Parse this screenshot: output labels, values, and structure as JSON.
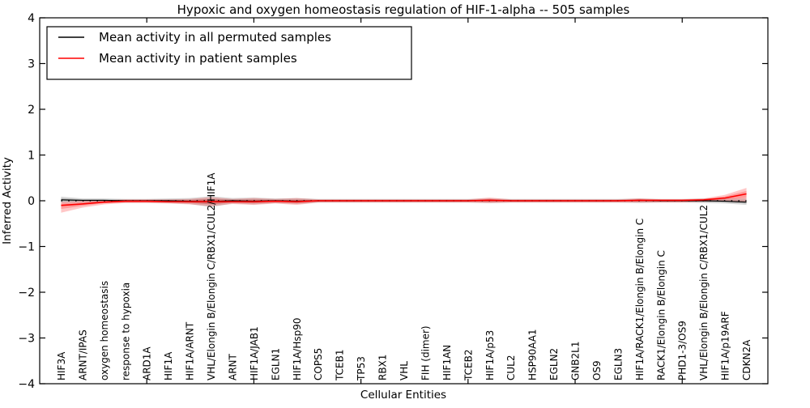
{
  "figure": {
    "title": "Hypoxic and oxygen homeostasis regulation of HIF-1-alpha -- 505 samples",
    "xlabel": "Cellular Entities",
    "ylabel": "Inferred Activity"
  },
  "legend": {
    "items": [
      {
        "label": "Mean activity in all permuted samples",
        "color": "#000000"
      },
      {
        "label": "Mean activity in patient samples",
        "color": "#ff0000"
      }
    ]
  },
  "chart_data": {
    "type": "line",
    "title": "Hypoxic and oxygen homeostasis regulation of HIF-1-alpha -- 505 samples",
    "xlabel": "Cellular Entities",
    "ylabel": "Inferred Activity",
    "ylim": [
      -4,
      4
    ],
    "xlim": [
      0,
      34
    ],
    "yticks": [
      -4,
      -3,
      -2,
      -1,
      0,
      1,
      2,
      3,
      4
    ],
    "xticks_minor_positions": [
      5,
      10,
      15,
      20,
      25,
      30
    ],
    "grid": false,
    "legend_position": "upper left",
    "x": [
      1,
      2,
      3,
      4,
      5,
      6,
      7,
      8,
      9,
      10,
      11,
      12,
      13,
      14,
      15,
      16,
      17,
      18,
      19,
      20,
      21,
      22,
      23,
      24,
      25,
      26,
      27,
      28,
      29,
      30,
      31,
      32,
      33
    ],
    "categories": [
      "HIF3A",
      "ARNT/IPAS",
      "oxygen homeostasis",
      "response to hypoxia",
      "ARD1A",
      "HIF1A",
      "HIF1A/ARNT",
      "VHL/Elongin B/Elongin C/RBX1/CUL2/HIF1A",
      "ARNT",
      "HIF1A/JAB1",
      "EGLN1",
      "HIF1A/Hsp90",
      "COPS5",
      "TCEB1",
      "TP53",
      "RBX1",
      "VHL",
      "FIH (dimer)",
      "HIF1AN",
      "TCEB2",
      "HIF1A/p53",
      "CUL2",
      "HSP90AA1",
      "EGLN2",
      "GNB2L1",
      "OS9",
      "EGLN3",
      "HIF1A/RACK1/Elongin B/Elongin C",
      "RACK1/Elongin B/Elongin C",
      "PHD1-3/OS9",
      "VHL/Elongin B/Elongin C/RBX1/CUL2",
      "HIF1A/p19ARF",
      "CDKN2A"
    ],
    "zero_line": {
      "y": 0,
      "style": "dotted",
      "color": "#000000"
    },
    "series": [
      {
        "name": "Mean activity in all permuted samples",
        "color": "#000000",
        "band_color": "rgba(0,0,0,0.15)",
        "values": [
          0.02,
          0.01,
          0.01,
          0,
          0,
          0,
          -0.01,
          -0.02,
          0,
          -0.01,
          0,
          -0.01,
          0,
          0,
          0,
          0,
          0,
          0,
          0,
          0,
          0.01,
          0,
          0,
          0,
          0,
          0,
          0,
          0.01,
          0,
          0,
          0,
          -0.01,
          -0.03
        ],
        "band_upper": [
          0.09,
          0.05,
          0.05,
          0.04,
          0.04,
          0.05,
          0.06,
          0.1,
          0.06,
          0.07,
          0.05,
          0.06,
          0.04,
          0.04,
          0.04,
          0.04,
          0.04,
          0.04,
          0.04,
          0.04,
          0.05,
          0.04,
          0.04,
          0.04,
          0.04,
          0.04,
          0.04,
          0.05,
          0.04,
          0.04,
          0.05,
          0.05,
          0.05
        ],
        "band_lower": [
          -0.05,
          -0.04,
          -0.04,
          -0.04,
          -0.04,
          -0.05,
          -0.07,
          -0.14,
          -0.06,
          -0.08,
          -0.05,
          -0.07,
          -0.04,
          -0.04,
          -0.04,
          -0.04,
          -0.04,
          -0.04,
          -0.04,
          -0.04,
          -0.05,
          -0.04,
          -0.04,
          -0.04,
          -0.04,
          -0.04,
          -0.04,
          -0.05,
          -0.04,
          -0.04,
          -0.05,
          -0.06,
          -0.09
        ]
      },
      {
        "name": "Mean activity in patient samples",
        "color": "#ff0000",
        "band_color": "rgba(255,0,0,0.22)",
        "values": [
          -0.1,
          -0.07,
          -0.03,
          -0.01,
          -0.01,
          -0.02,
          -0.02,
          -0.02,
          -0.02,
          -0.02,
          -0.01,
          -0.02,
          0,
          0,
          0,
          0,
          0,
          0,
          0,
          0,
          0.01,
          0,
          0,
          0,
          0,
          0,
          0,
          0.01,
          0.01,
          0.01,
          0.02,
          0.06,
          0.15
        ],
        "band_upper": [
          -0.02,
          0,
          0.01,
          0.03,
          0.03,
          0.03,
          0.04,
          0.08,
          0.04,
          0.06,
          0.04,
          0.06,
          0.03,
          0.03,
          0.03,
          0.03,
          0.03,
          0.03,
          0.03,
          0.03,
          0.07,
          0.03,
          0.03,
          0.03,
          0.03,
          0.03,
          0.03,
          0.05,
          0.03,
          0.03,
          0.05,
          0.13,
          0.28
        ],
        "band_lower": [
          -0.26,
          -0.15,
          -0.08,
          -0.05,
          -0.05,
          -0.06,
          -0.08,
          -0.12,
          -0.07,
          -0.09,
          -0.06,
          -0.09,
          -0.04,
          -0.04,
          -0.04,
          -0.04,
          -0.04,
          -0.04,
          -0.04,
          -0.04,
          -0.05,
          -0.04,
          -0.04,
          -0.04,
          -0.04,
          -0.04,
          -0.04,
          -0.04,
          -0.04,
          -0.04,
          -0.02,
          0,
          -0.02
        ]
      }
    ]
  }
}
